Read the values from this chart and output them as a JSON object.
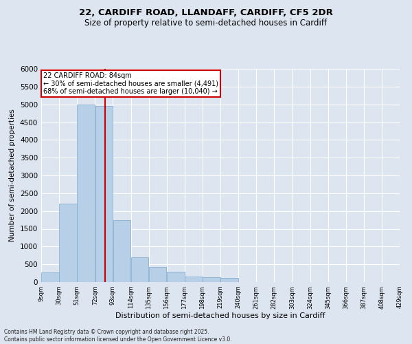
{
  "title1": "22, CARDIFF ROAD, LLANDAFF, CARDIFF, CF5 2DR",
  "title2": "Size of property relative to semi-detached houses in Cardiff",
  "xlabel": "Distribution of semi-detached houses by size in Cardiff",
  "ylabel": "Number of semi-detached properties",
  "footer1": "Contains HM Land Registry data © Crown copyright and database right 2025.",
  "footer2": "Contains public sector information licensed under the Open Government Licence v3.0.",
  "annotation_title": "22 CARDIFF ROAD: 84sqm",
  "annotation_line1": "← 30% of semi-detached houses are smaller (4,491)",
  "annotation_line2": "68% of semi-detached houses are larger (10,040) →",
  "property_size": 84,
  "bar_bins": [
    9,
    30,
    51,
    72,
    93,
    114,
    135,
    156,
    177,
    198,
    219,
    240,
    261,
    282,
    303,
    324,
    345,
    366,
    387,
    408,
    429
  ],
  "bar_heights": [
    280,
    2200,
    5000,
    4950,
    1750,
    700,
    420,
    290,
    160,
    130,
    110,
    0,
    0,
    0,
    0,
    0,
    0,
    0,
    0,
    0
  ],
  "bar_color": "#b8cfe8",
  "bar_edge_color": "#7ba8cc",
  "vline_color": "#cc0000",
  "background_color": "#dde5f0",
  "plot_bg_color": "#dde5f0",
  "grid_color": "#ffffff",
  "annotation_box_color": "#ffffff",
  "annotation_border_color": "#cc0000",
  "ylim": [
    0,
    6000
  ],
  "yticks": [
    0,
    500,
    1000,
    1500,
    2000,
    2500,
    3000,
    3500,
    4000,
    4500,
    5000,
    5500,
    6000
  ],
  "title1_fontsize": 9.5,
  "title2_fontsize": 8.5,
  "xlabel_fontsize": 8,
  "ylabel_fontsize": 7.5,
  "xtick_fontsize": 6.0,
  "ytick_fontsize": 7.5,
  "footer_fontsize": 5.5,
  "annotation_fontsize": 7.0
}
